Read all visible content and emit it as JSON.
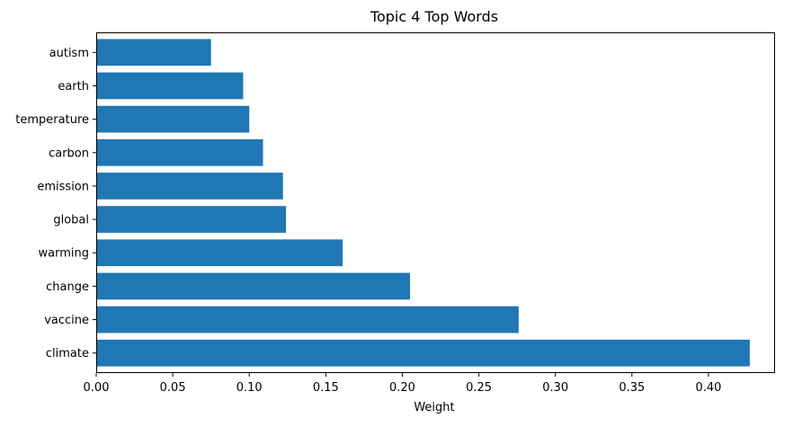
{
  "chart_data": {
    "type": "bar",
    "orientation": "horizontal",
    "title": "Topic 4 Top Words",
    "xlabel": "Weight",
    "ylabel": "",
    "categories": [
      "climate",
      "vaccine",
      "change",
      "warming",
      "global",
      "emission",
      "carbon",
      "temperature",
      "earth",
      "autism"
    ],
    "values": [
      0.427,
      0.276,
      0.205,
      0.161,
      0.124,
      0.122,
      0.109,
      0.1,
      0.096,
      0.075
    ],
    "xlim": [
      0,
      0.4435
    ],
    "xticks": [
      "0.00",
      "0.05",
      "0.10",
      "0.15",
      "0.20",
      "0.25",
      "0.30",
      "0.35",
      "0.40"
    ],
    "xtick_values": [
      0,
      0.05,
      0.1,
      0.15,
      0.2,
      0.25,
      0.3,
      0.35,
      0.4
    ],
    "grid": false,
    "legend": "none",
    "bar_color": "#1f77b4",
    "axis_color": "#000000"
  }
}
